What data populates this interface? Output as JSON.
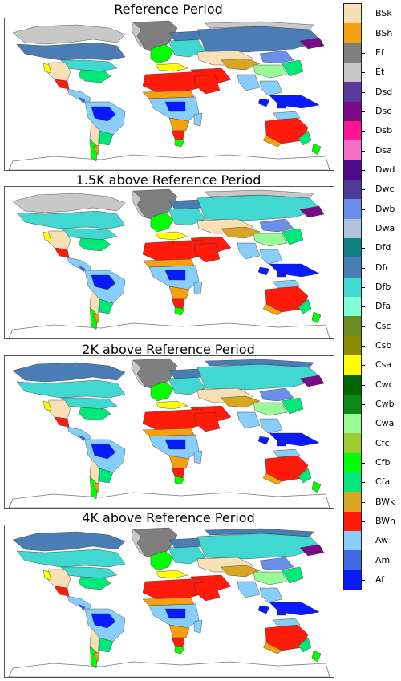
{
  "panels": [
    {
      "title": "Reference Period"
    },
    {
      "title": "1.5K above Reference Period"
    },
    {
      "title": "2K above Reference Period"
    },
    {
      "title": "4K above Reference Period"
    }
  ],
  "legend": {
    "items": [
      {
        "label": "BSk",
        "color": "#f7e0b5"
      },
      {
        "label": "BSh",
        "color": "#f5a10f"
      },
      {
        "label": "Ef",
        "color": "#7f7f7f"
      },
      {
        "label": "Et",
        "color": "#c8c8c8"
      },
      {
        "label": "Dsd",
        "color": "#5a3a9c"
      },
      {
        "label": "Dsc",
        "color": "#7a0b86"
      },
      {
        "label": "Dsb",
        "color": "#ff1493"
      },
      {
        "label": "Dsa",
        "color": "#f56fc2"
      },
      {
        "label": "Dwd",
        "color": "#4b0a8c"
      },
      {
        "label": "Dwc",
        "color": "#4e3b96"
      },
      {
        "label": "Dwb",
        "color": "#6a8fea"
      },
      {
        "label": "Dwa",
        "color": "#b0c4de"
      },
      {
        "label": "Dfd",
        "color": "#0e8080"
      },
      {
        "label": "Dfc",
        "color": "#4a7db5"
      },
      {
        "label": "Dfb",
        "color": "#40d8d0"
      },
      {
        "label": "Dfa",
        "color": "#7fffd4"
      },
      {
        "label": "Csc",
        "color": "#6b8e23"
      },
      {
        "label": "Csb",
        "color": "#8b8b00"
      },
      {
        "label": "Csa",
        "color": "#ffff00"
      },
      {
        "label": "Cwc",
        "color": "#006400"
      },
      {
        "label": "Cwb",
        "color": "#0b8a14"
      },
      {
        "label": "Cwa",
        "color": "#98fb98"
      },
      {
        "label": "Cfc",
        "color": "#9acd32"
      },
      {
        "label": "Cfb",
        "color": "#00ff00"
      },
      {
        "label": "Cfa",
        "color": "#00e87a"
      },
      {
        "label": "BWk",
        "color": "#daa520"
      },
      {
        "label": "BWh",
        "color": "#ff1a0a"
      },
      {
        "label": "Aw",
        "color": "#87cefa"
      },
      {
        "label": "Am",
        "color": "#4169e1"
      },
      {
        "label": "Af",
        "color": "#0a1aff"
      }
    ]
  }
}
